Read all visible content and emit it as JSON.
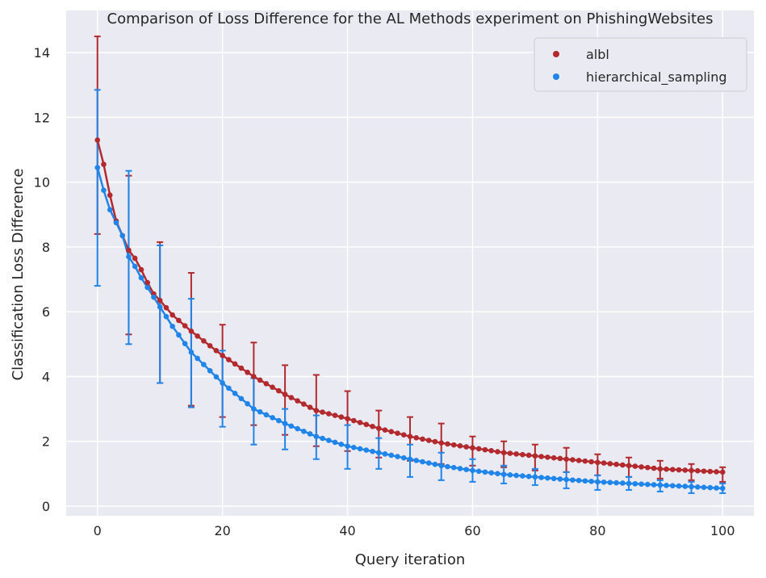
{
  "chart_data": {
    "type": "line",
    "title": "Comparison of Loss Difference for the AL Methods experiment on PhishingWebsites",
    "xlabel": "Query iteration",
    "ylabel": "Classification Loss Difference",
    "xlim": [
      -5,
      105
    ],
    "ylim": [
      -0.3,
      15.3
    ],
    "xticks": [
      0,
      20,
      40,
      60,
      80,
      100
    ],
    "yticks": [
      0,
      2,
      4,
      6,
      8,
      10,
      12,
      14
    ],
    "grid": true,
    "legend_position": "top-right",
    "series": [
      {
        "name": "albl",
        "color": "#b22a2e",
        "anchors": [
          [
            0,
            11.3
          ],
          [
            1,
            10.55
          ],
          [
            2,
            9.6
          ],
          [
            3,
            8.8
          ],
          [
            4,
            8.35
          ],
          [
            5,
            7.9
          ],
          [
            6,
            7.65
          ],
          [
            7,
            7.3
          ],
          [
            8,
            6.9
          ],
          [
            9,
            6.55
          ],
          [
            10,
            6.35
          ],
          [
            12,
            5.9
          ],
          [
            15,
            5.4
          ],
          [
            20,
            4.65
          ],
          [
            25,
            4.0
          ],
          [
            30,
            3.45
          ],
          [
            35,
            2.95
          ],
          [
            40,
            2.7
          ],
          [
            45,
            2.4
          ],
          [
            50,
            2.15
          ],
          [
            55,
            1.95
          ],
          [
            60,
            1.8
          ],
          [
            65,
            1.65
          ],
          [
            70,
            1.55
          ],
          [
            75,
            1.45
          ],
          [
            80,
            1.35
          ],
          [
            85,
            1.25
          ],
          [
            90,
            1.15
          ],
          [
            95,
            1.1
          ],
          [
            100,
            1.05
          ]
        ],
        "errorbars": [
          {
            "x": 0,
            "y": 11.3,
            "low": 8.4,
            "high": 14.5
          },
          {
            "x": 5,
            "y": 7.9,
            "low": 5.3,
            "high": 10.2
          },
          {
            "x": 10,
            "y": 6.35,
            "low": 3.8,
            "high": 8.15
          },
          {
            "x": 15,
            "y": 5.4,
            "low": 3.1,
            "high": 7.2
          },
          {
            "x": 20,
            "y": 4.65,
            "low": 2.75,
            "high": 5.6
          },
          {
            "x": 25,
            "y": 4.0,
            "low": 2.5,
            "high": 5.05
          },
          {
            "x": 30,
            "y": 3.45,
            "low": 2.2,
            "high": 4.35
          },
          {
            "x": 35,
            "y": 2.95,
            "low": 1.85,
            "high": 4.05
          },
          {
            "x": 40,
            "y": 2.7,
            "low": 1.7,
            "high": 3.55
          },
          {
            "x": 45,
            "y": 2.4,
            "low": 1.5,
            "high": 2.95
          },
          {
            "x": 50,
            "y": 2.15,
            "low": 1.4,
            "high": 2.75
          },
          {
            "x": 55,
            "y": 1.95,
            "low": 1.3,
            "high": 2.55
          },
          {
            "x": 60,
            "y": 1.8,
            "low": 1.25,
            "high": 2.15
          },
          {
            "x": 65,
            "y": 1.65,
            "low": 1.2,
            "high": 2.0
          },
          {
            "x": 70,
            "y": 1.55,
            "low": 1.1,
            "high": 1.9
          },
          {
            "x": 75,
            "y": 1.45,
            "low": 1.05,
            "high": 1.8
          },
          {
            "x": 80,
            "y": 1.35,
            "low": 0.95,
            "high": 1.6
          },
          {
            "x": 85,
            "y": 1.25,
            "low": 0.9,
            "high": 1.5
          },
          {
            "x": 90,
            "y": 1.15,
            "low": 0.85,
            "high": 1.4
          },
          {
            "x": 95,
            "y": 1.1,
            "low": 0.8,
            "high": 1.3
          },
          {
            "x": 100,
            "y": 1.05,
            "low": 0.75,
            "high": 1.2
          }
        ]
      },
      {
        "name": "hierarchical_sampling",
        "color": "#1f85e8",
        "anchors": [
          [
            0,
            10.45
          ],
          [
            1,
            9.75
          ],
          [
            2,
            9.15
          ],
          [
            3,
            8.75
          ],
          [
            4,
            8.35
          ],
          [
            5,
            7.7
          ],
          [
            6,
            7.4
          ],
          [
            7,
            7.05
          ],
          [
            8,
            6.75
          ],
          [
            9,
            6.45
          ],
          [
            10,
            6.15
          ],
          [
            12,
            5.55
          ],
          [
            15,
            4.75
          ],
          [
            20,
            3.8
          ],
          [
            25,
            3.0
          ],
          [
            30,
            2.55
          ],
          [
            35,
            2.15
          ],
          [
            40,
            1.85
          ],
          [
            45,
            1.65
          ],
          [
            50,
            1.45
          ],
          [
            55,
            1.25
          ],
          [
            60,
            1.1
          ],
          [
            65,
            0.98
          ],
          [
            70,
            0.9
          ],
          [
            75,
            0.82
          ],
          [
            80,
            0.75
          ],
          [
            85,
            0.7
          ],
          [
            90,
            0.65
          ],
          [
            95,
            0.6
          ],
          [
            100,
            0.55
          ]
        ],
        "errorbars": [
          {
            "x": 0,
            "y": 10.45,
            "low": 6.8,
            "high": 12.85
          },
          {
            "x": 5,
            "y": 7.7,
            "low": 5.0,
            "high": 10.35
          },
          {
            "x": 10,
            "y": 6.15,
            "low": 3.8,
            "high": 8.05
          },
          {
            "x": 15,
            "y": 4.75,
            "low": 3.05,
            "high": 6.4
          },
          {
            "x": 20,
            "y": 3.8,
            "low": 2.45,
            "high": 4.8
          },
          {
            "x": 25,
            "y": 3.0,
            "low": 1.9,
            "high": 3.95
          },
          {
            "x": 30,
            "y": 2.55,
            "low": 1.75,
            "high": 3.0
          },
          {
            "x": 35,
            "y": 2.15,
            "low": 1.45,
            "high": 2.8
          },
          {
            "x": 40,
            "y": 1.85,
            "low": 1.15,
            "high": 2.5
          },
          {
            "x": 45,
            "y": 1.65,
            "low": 1.15,
            "high": 2.1
          },
          {
            "x": 50,
            "y": 1.45,
            "low": 0.9,
            "high": 1.9
          },
          {
            "x": 55,
            "y": 1.25,
            "low": 0.8,
            "high": 1.65
          },
          {
            "x": 60,
            "y": 1.1,
            "low": 0.75,
            "high": 1.45
          },
          {
            "x": 65,
            "y": 0.98,
            "low": 0.7,
            "high": 1.25
          },
          {
            "x": 70,
            "y": 0.9,
            "low": 0.65,
            "high": 1.15
          },
          {
            "x": 75,
            "y": 0.82,
            "low": 0.55,
            "high": 1.05
          },
          {
            "x": 80,
            "y": 0.75,
            "low": 0.5,
            "high": 0.95
          },
          {
            "x": 85,
            "y": 0.7,
            "low": 0.5,
            "high": 0.9
          },
          {
            "x": 90,
            "y": 0.65,
            "low": 0.45,
            "high": 0.8
          },
          {
            "x": 95,
            "y": 0.6,
            "low": 0.4,
            "high": 0.75
          },
          {
            "x": 100,
            "y": 0.55,
            "low": 0.4,
            "high": 0.7
          }
        ]
      }
    ]
  }
}
